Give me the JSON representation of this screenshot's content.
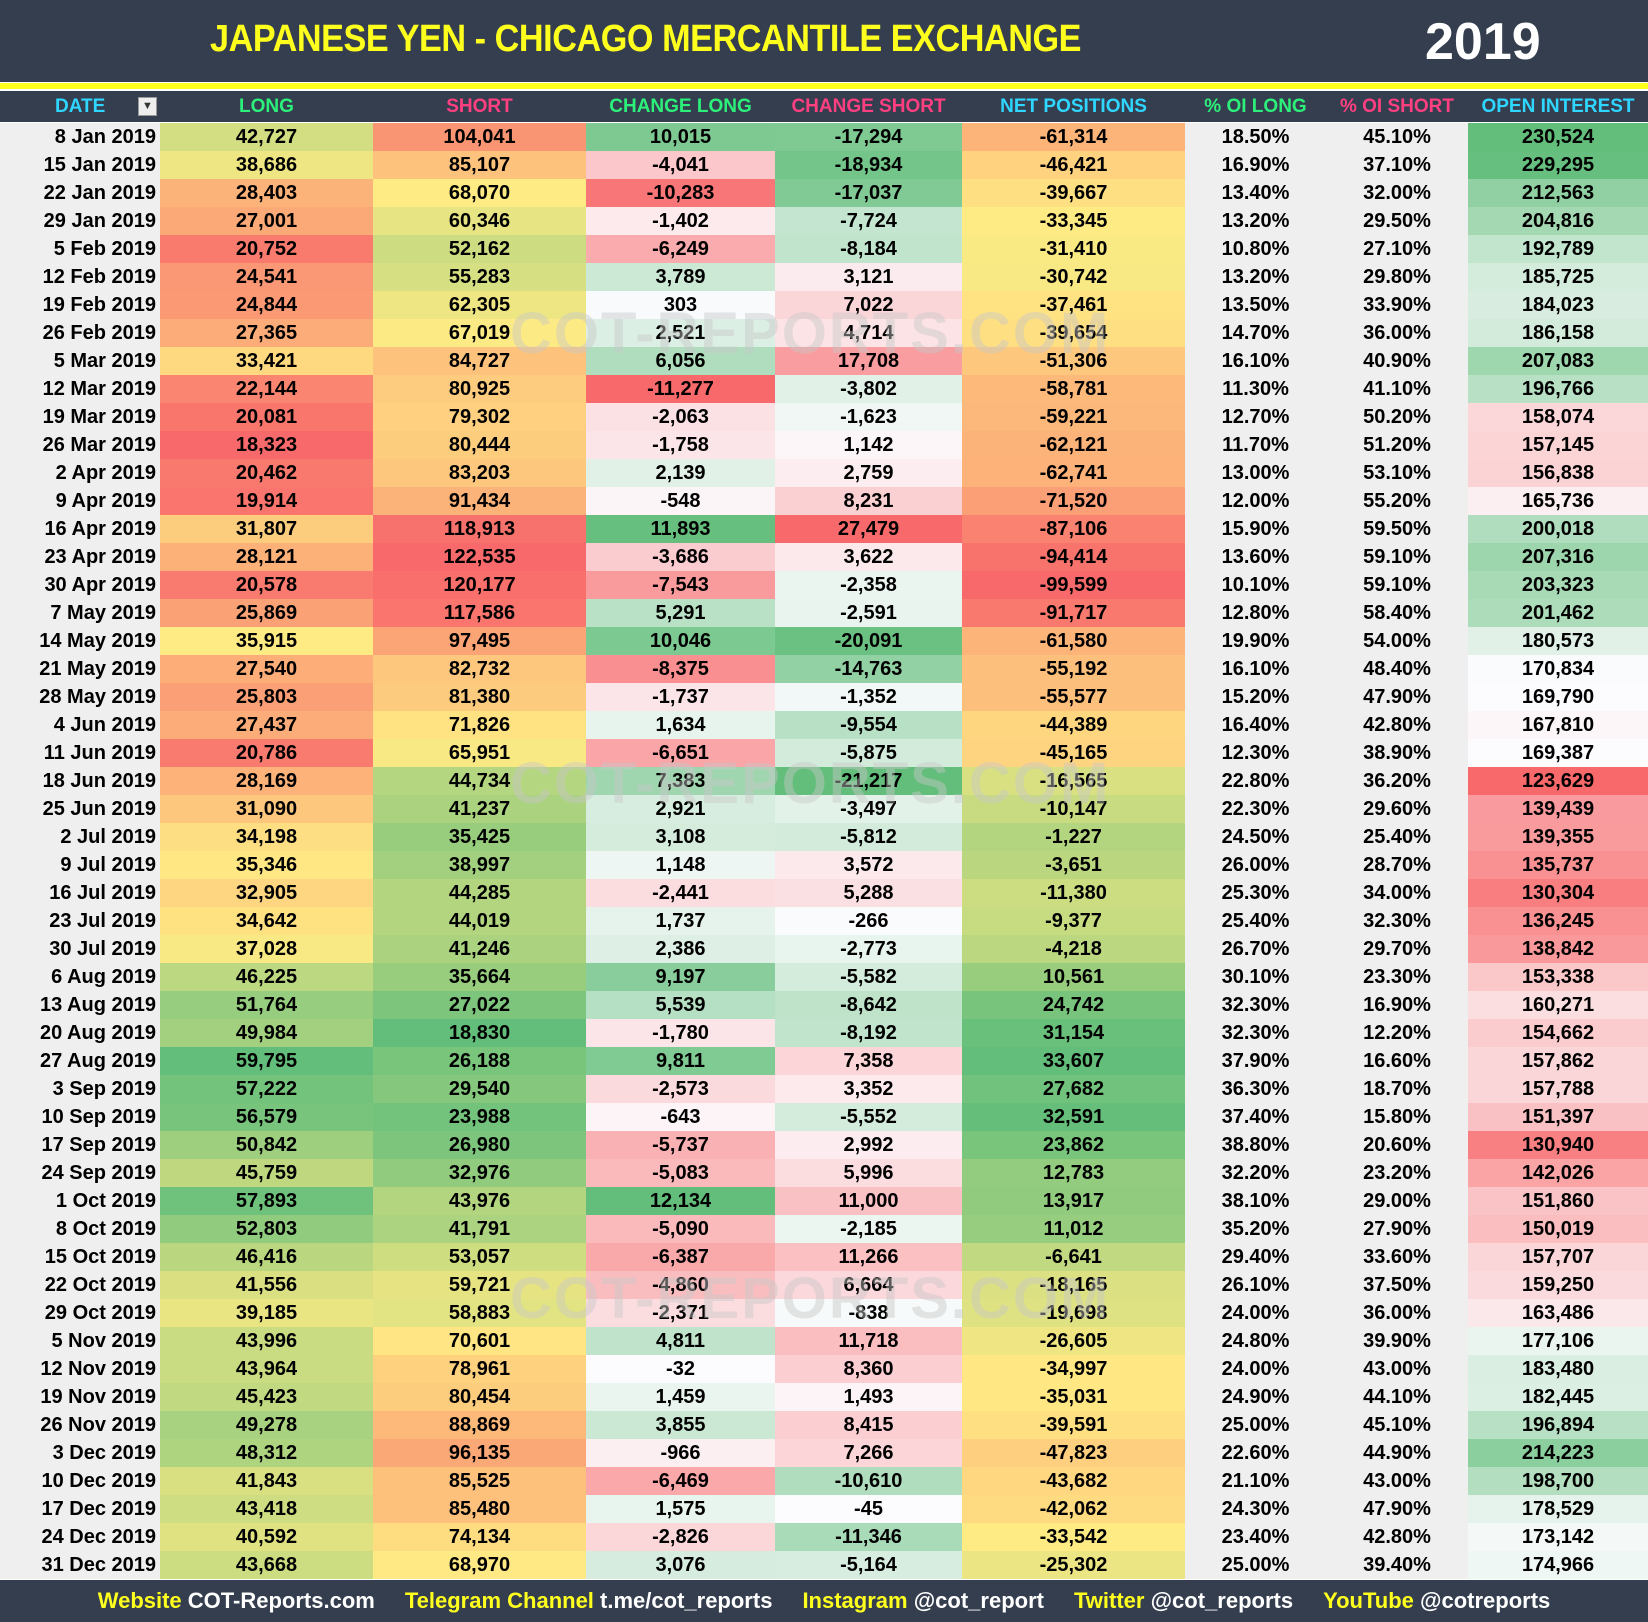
{
  "header": {
    "title": "JAPANESE YEN - CHICAGO MERCANTILE EXCHANGE",
    "year": "2019"
  },
  "columns": [
    {
      "label": "DATE",
      "color": "#2fd6ff"
    },
    {
      "label": "LONG",
      "color": "#2cf07a"
    },
    {
      "label": "SHORT",
      "color": "#ff3f80"
    },
    {
      "label": "CHANGE LONG",
      "color": "#2cf07a"
    },
    {
      "label": "CHANGE SHORT",
      "color": "#ff3f80"
    },
    {
      "label": "NET POSITIONS",
      "color": "#2fd6ff"
    },
    {
      "label": "% OI LONG",
      "color": "#2cf07a"
    },
    {
      "label": "% OI SHORT",
      "color": "#ff3f80"
    },
    {
      "label": "OPEN INTEREST",
      "color": "#2fd6ff"
    }
  ],
  "filter_icon": "filter-dropdown-icon",
  "scale_colors": {
    "red": "#f8696b",
    "yellow": "#ffeb84",
    "green": "#63be7b",
    "white": "#fcfcff"
  },
  "watermark": "COT-REPORTS.COM",
  "rows": [
    [
      "8 Jan 2019",
      "42,727",
      "104,041",
      "10,015",
      "-17,294",
      "-61,314",
      "18.50%",
      "45.10%",
      "230,524"
    ],
    [
      "15 Jan 2019",
      "38,686",
      "85,107",
      "-4,041",
      "-18,934",
      "-46,421",
      "16.90%",
      "37.10%",
      "229,295"
    ],
    [
      "22 Jan 2019",
      "28,403",
      "68,070",
      "-10,283",
      "-17,037",
      "-39,667",
      "13.40%",
      "32.00%",
      "212,563"
    ],
    [
      "29 Jan 2019",
      "27,001",
      "60,346",
      "-1,402",
      "-7,724",
      "-33,345",
      "13.20%",
      "29.50%",
      "204,816"
    ],
    [
      "5 Feb 2019",
      "20,752",
      "52,162",
      "-6,249",
      "-8,184",
      "-31,410",
      "10.80%",
      "27.10%",
      "192,789"
    ],
    [
      "12 Feb 2019",
      "24,541",
      "55,283",
      "3,789",
      "3,121",
      "-30,742",
      "13.20%",
      "29.80%",
      "185,725"
    ],
    [
      "19 Feb 2019",
      "24,844",
      "62,305",
      "303",
      "7,022",
      "-37,461",
      "13.50%",
      "33.90%",
      "184,023"
    ],
    [
      "26 Feb 2019",
      "27,365",
      "67,019",
      "2,521",
      "4,714",
      "-39,654",
      "14.70%",
      "36.00%",
      "186,158"
    ],
    [
      "5 Mar 2019",
      "33,421",
      "84,727",
      "6,056",
      "17,708",
      "-51,306",
      "16.10%",
      "40.90%",
      "207,083"
    ],
    [
      "12 Mar 2019",
      "22,144",
      "80,925",
      "-11,277",
      "-3,802",
      "-58,781",
      "11.30%",
      "41.10%",
      "196,766"
    ],
    [
      "19 Mar 2019",
      "20,081",
      "79,302",
      "-2,063",
      "-1,623",
      "-59,221",
      "12.70%",
      "50.20%",
      "158,074"
    ],
    [
      "26 Mar 2019",
      "18,323",
      "80,444",
      "-1,758",
      "1,142",
      "-62,121",
      "11.70%",
      "51.20%",
      "157,145"
    ],
    [
      "2 Apr 2019",
      "20,462",
      "83,203",
      "2,139",
      "2,759",
      "-62,741",
      "13.00%",
      "53.10%",
      "156,838"
    ],
    [
      "9 Apr 2019",
      "19,914",
      "91,434",
      "-548",
      "8,231",
      "-71,520",
      "12.00%",
      "55.20%",
      "165,736"
    ],
    [
      "16 Apr 2019",
      "31,807",
      "118,913",
      "11,893",
      "27,479",
      "-87,106",
      "15.90%",
      "59.50%",
      "200,018"
    ],
    [
      "23 Apr 2019",
      "28,121",
      "122,535",
      "-3,686",
      "3,622",
      "-94,414",
      "13.60%",
      "59.10%",
      "207,316"
    ],
    [
      "30 Apr 2019",
      "20,578",
      "120,177",
      "-7,543",
      "-2,358",
      "-99,599",
      "10.10%",
      "59.10%",
      "203,323"
    ],
    [
      "7 May 2019",
      "25,869",
      "117,586",
      "5,291",
      "-2,591",
      "-91,717",
      "12.80%",
      "58.40%",
      "201,462"
    ],
    [
      "14 May 2019",
      "35,915",
      "97,495",
      "10,046",
      "-20,091",
      "-61,580",
      "19.90%",
      "54.00%",
      "180,573"
    ],
    [
      "21 May 2019",
      "27,540",
      "82,732",
      "-8,375",
      "-14,763",
      "-55,192",
      "16.10%",
      "48.40%",
      "170,834"
    ],
    [
      "28 May 2019",
      "25,803",
      "81,380",
      "-1,737",
      "-1,352",
      "-55,577",
      "15.20%",
      "47.90%",
      "169,790"
    ],
    [
      "4 Jun 2019",
      "27,437",
      "71,826",
      "1,634",
      "-9,554",
      "-44,389",
      "16.40%",
      "42.80%",
      "167,810"
    ],
    [
      "11 Jun 2019",
      "20,786",
      "65,951",
      "-6,651",
      "-5,875",
      "-45,165",
      "12.30%",
      "38.90%",
      "169,387"
    ],
    [
      "18 Jun 2019",
      "28,169",
      "44,734",
      "7,383",
      "-21,217",
      "-16,565",
      "22.80%",
      "36.20%",
      "123,629"
    ],
    [
      "25 Jun 2019",
      "31,090",
      "41,237",
      "2,921",
      "-3,497",
      "-10,147",
      "22.30%",
      "29.60%",
      "139,439"
    ],
    [
      "2 Jul 2019",
      "34,198",
      "35,425",
      "3,108",
      "-5,812",
      "-1,227",
      "24.50%",
      "25.40%",
      "139,355"
    ],
    [
      "9 Jul 2019",
      "35,346",
      "38,997",
      "1,148",
      "3,572",
      "-3,651",
      "26.00%",
      "28.70%",
      "135,737"
    ],
    [
      "16 Jul 2019",
      "32,905",
      "44,285",
      "-2,441",
      "5,288",
      "-11,380",
      "25.30%",
      "34.00%",
      "130,304"
    ],
    [
      "23 Jul 2019",
      "34,642",
      "44,019",
      "1,737",
      "-266",
      "-9,377",
      "25.40%",
      "32.30%",
      "136,245"
    ],
    [
      "30 Jul 2019",
      "37,028",
      "41,246",
      "2,386",
      "-2,773",
      "-4,218",
      "26.70%",
      "29.70%",
      "138,842"
    ],
    [
      "6 Aug 2019",
      "46,225",
      "35,664",
      "9,197",
      "-5,582",
      "10,561",
      "30.10%",
      "23.30%",
      "153,338"
    ],
    [
      "13 Aug 2019",
      "51,764",
      "27,022",
      "5,539",
      "-8,642",
      "24,742",
      "32.30%",
      "16.90%",
      "160,271"
    ],
    [
      "20 Aug 2019",
      "49,984",
      "18,830",
      "-1,780",
      "-8,192",
      "31,154",
      "32.30%",
      "12.20%",
      "154,662"
    ],
    [
      "27 Aug 2019",
      "59,795",
      "26,188",
      "9,811",
      "7,358",
      "33,607",
      "37.90%",
      "16.60%",
      "157,862"
    ],
    [
      "3 Sep 2019",
      "57,222",
      "29,540",
      "-2,573",
      "3,352",
      "27,682",
      "36.30%",
      "18.70%",
      "157,788"
    ],
    [
      "10 Sep 2019",
      "56,579",
      "23,988",
      "-643",
      "-5,552",
      "32,591",
      "37.40%",
      "15.80%",
      "151,397"
    ],
    [
      "17 Sep 2019",
      "50,842",
      "26,980",
      "-5,737",
      "2,992",
      "23,862",
      "38.80%",
      "20.60%",
      "130,940"
    ],
    [
      "24 Sep 2019",
      "45,759",
      "32,976",
      "-5,083",
      "5,996",
      "12,783",
      "32.20%",
      "23.20%",
      "142,026"
    ],
    [
      "1 Oct 2019",
      "57,893",
      "43,976",
      "12,134",
      "11,000",
      "13,917",
      "38.10%",
      "29.00%",
      "151,860"
    ],
    [
      "8 Oct 2019",
      "52,803",
      "41,791",
      "-5,090",
      "-2,185",
      "11,012",
      "35.20%",
      "27.90%",
      "150,019"
    ],
    [
      "15 Oct 2019",
      "46,416",
      "53,057",
      "-6,387",
      "11,266",
      "-6,641",
      "29.40%",
      "33.60%",
      "157,707"
    ],
    [
      "22 Oct 2019",
      "41,556",
      "59,721",
      "-4,860",
      "6,664",
      "-18,165",
      "26.10%",
      "37.50%",
      "159,250"
    ],
    [
      "29 Oct 2019",
      "39,185",
      "58,883",
      "-2,371",
      "-838",
      "-19,698",
      "24.00%",
      "36.00%",
      "163,486"
    ],
    [
      "5 Nov 2019",
      "43,996",
      "70,601",
      "4,811",
      "11,718",
      "-26,605",
      "24.80%",
      "39.90%",
      "177,106"
    ],
    [
      "12 Nov 2019",
      "43,964",
      "78,961",
      "-32",
      "8,360",
      "-34,997",
      "24.00%",
      "43.00%",
      "183,480"
    ],
    [
      "19 Nov 2019",
      "45,423",
      "80,454",
      "1,459",
      "1,493",
      "-35,031",
      "24.90%",
      "44.10%",
      "182,445"
    ],
    [
      "26 Nov 2019",
      "49,278",
      "88,869",
      "3,855",
      "8,415",
      "-39,591",
      "25.00%",
      "45.10%",
      "196,894"
    ],
    [
      "3 Dec 2019",
      "48,312",
      "96,135",
      "-966",
      "7,266",
      "-47,823",
      "22.60%",
      "44.90%",
      "214,223"
    ],
    [
      "10 Dec 2019",
      "41,843",
      "85,525",
      "-6,469",
      "-10,610",
      "-43,682",
      "21.10%",
      "43.00%",
      "198,700"
    ],
    [
      "17 Dec 2019",
      "43,418",
      "85,480",
      "1,575",
      "-45",
      "-42,062",
      "24.30%",
      "47.90%",
      "178,529"
    ],
    [
      "24 Dec 2019",
      "40,592",
      "74,134",
      "-2,826",
      "-11,346",
      "-33,542",
      "23.40%",
      "42.80%",
      "173,142"
    ],
    [
      "31 Dec 2019",
      "43,668",
      "68,970",
      "3,076",
      "-5,164",
      "-25,302",
      "25.00%",
      "39.40%",
      "174,966"
    ]
  ],
  "footer": [
    {
      "label": "Website",
      "value": "COT-Reports.com"
    },
    {
      "label": "Telegram Channel",
      "value": "t.me/cot_reports"
    },
    {
      "label": "Instagram",
      "value": "@cot_report"
    },
    {
      "label": "Twitter",
      "value": "@cot_reports"
    },
    {
      "label": "YouTube",
      "value": "@cotreports"
    }
  ]
}
